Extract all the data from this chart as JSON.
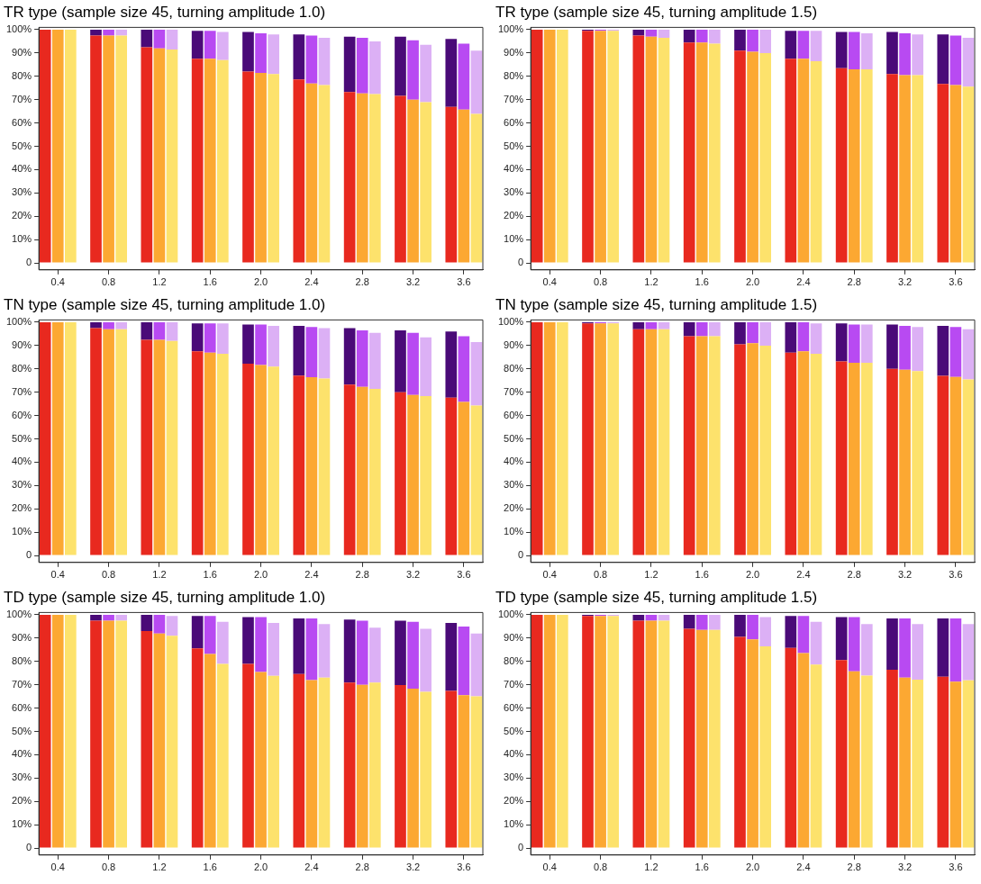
{
  "chart_data": [
    {
      "type": "bar",
      "title": "TR type (sample size 45, turning amplitude 1.0)",
      "stacked": true,
      "categories": [
        null,
        "0.4",
        null,
        null,
        null,
        "0.8",
        null,
        null,
        null,
        "1.2",
        null,
        null,
        null,
        "1.6",
        null,
        null,
        null,
        "2.0",
        null,
        null,
        null,
        "2.4",
        null,
        null,
        null,
        "2.8",
        null,
        null,
        null,
        "3.2",
        null,
        null,
        null,
        "3.6",
        null
      ],
      "ylim": [
        -3,
        101
      ],
      "yticks": [
        {
          "value": 0,
          "label": "0"
        },
        {
          "value": 10,
          "label": "10%"
        },
        {
          "value": 20,
          "label": "20%"
        },
        {
          "value": 30,
          "label": "30%"
        },
        {
          "value": 40,
          "label": "40%"
        },
        {
          "value": 50,
          "label": "50%"
        },
        {
          "value": 60,
          "label": "60%"
        },
        {
          "value": 70,
          "label": "70%"
        },
        {
          "value": 80,
          "label": "80%"
        },
        {
          "value": 90,
          "label": "90%"
        },
        {
          "value": 100,
          "label": "100%"
        }
      ],
      "grid": false,
      "legend": false,
      "series": [
        {
          "colors": [
            "#e8291f",
            "#fca832",
            "#fde26c",
            "#ffffff",
            "#e8291f",
            "#fca832",
            "#fde26c",
            "#ffffff",
            "#e8291f",
            "#fca832",
            "#fde26c",
            "#ffffff",
            "#e8291f",
            "#fca832",
            "#fde26c",
            "#ffffff",
            "#e8291f",
            "#fca832",
            "#fde26c",
            "#ffffff",
            "#e8291f",
            "#fca832",
            "#fde26c",
            "#ffffff",
            "#e8291f",
            "#fca832",
            "#fde26c",
            "#ffffff",
            "#e8291f",
            "#fca832",
            "#fde26c",
            "#ffffff",
            "#e8291f",
            "#fca832",
            "#fde26c"
          ],
          "values": [
            100,
            100,
            100,
            null,
            97.5,
            97.5,
            97.5,
            null,
            92.5,
            92,
            91.5,
            null,
            87.5,
            87.5,
            87,
            null,
            82,
            81.5,
            81,
            null,
            78.7,
            76.9,
            76.3,
            null,
            73.3,
            72.7,
            72.4,
            null,
            71.6,
            70,
            68.9,
            null,
            66.9,
            65.7,
            63.9
          ]
        },
        {
          "colors": [
            "#4a0a78",
            "#b84af2",
            "#dcb0f5",
            "#ffffff",
            "#4a0a78",
            "#b84af2",
            "#dcb0f5",
            "#ffffff",
            "#4a0a78",
            "#b84af2",
            "#dcb0f5",
            "#ffffff",
            "#4a0a78",
            "#b84af2",
            "#dcb0f5",
            "#ffffff",
            "#4a0a78",
            "#b84af2",
            "#dcb0f5",
            "#ffffff",
            "#4a0a78",
            "#b84af2",
            "#dcb0f5",
            "#ffffff",
            "#4a0a78",
            "#b84af2",
            "#dcb0f5",
            "#ffffff",
            "#4a0a78",
            "#b84af2",
            "#dcb0f5",
            "#ffffff",
            "#4a0a78",
            "#b84af2",
            "#dcb0f5"
          ],
          "values": [
            0,
            0,
            0,
            null,
            2.5,
            2.5,
            2.5,
            null,
            7.5,
            8,
            8.5,
            null,
            12,
            12,
            12,
            null,
            17,
            17,
            17,
            null,
            19.3,
            20.6,
            20.2,
            null,
            23.7,
            23.8,
            22.6,
            null,
            25.4,
            25.5,
            24.6,
            null,
            29.1,
            28.3,
            27.1
          ]
        }
      ]
    },
    {
      "type": "bar",
      "title": "TR type (sample size 45, turning amplitude 1.5)",
      "stacked": true,
      "categories": [
        null,
        "0.4",
        null,
        null,
        null,
        "0.8",
        null,
        null,
        null,
        "1.2",
        null,
        null,
        null,
        "1.6",
        null,
        null,
        null,
        "2.0",
        null,
        null,
        null,
        "2.4",
        null,
        null,
        null,
        "2.8",
        null,
        null,
        null,
        "3.2",
        null,
        null,
        null,
        "3.6",
        null
      ],
      "ylim": [
        -3,
        101
      ],
      "yticks": [
        {
          "value": 0,
          "label": "0"
        },
        {
          "value": 10,
          "label": "10%"
        },
        {
          "value": 20,
          "label": "20%"
        },
        {
          "value": 30,
          "label": "30%"
        },
        {
          "value": 40,
          "label": "40%"
        },
        {
          "value": 50,
          "label": "50%"
        },
        {
          "value": 60,
          "label": "60%"
        },
        {
          "value": 70,
          "label": "70%"
        },
        {
          "value": 80,
          "label": "80%"
        },
        {
          "value": 90,
          "label": "90%"
        },
        {
          "value": 100,
          "label": "100%"
        }
      ],
      "grid": false,
      "legend": false,
      "series": [
        {
          "colors": [
            "#e8291f",
            "#fca832",
            "#fde26c",
            "#ffffff",
            "#e8291f",
            "#fca832",
            "#fde26c",
            "#ffffff",
            "#e8291f",
            "#fca832",
            "#fde26c",
            "#ffffff",
            "#e8291f",
            "#fca832",
            "#fde26c",
            "#ffffff",
            "#e8291f",
            "#fca832",
            "#fde26c",
            "#ffffff",
            "#e8291f",
            "#fca832",
            "#fde26c",
            "#ffffff",
            "#e8291f",
            "#fca832",
            "#fde26c",
            "#ffffff",
            "#e8291f",
            "#fca832",
            "#fde26c",
            "#ffffff",
            "#e8291f",
            "#fca832",
            "#fde26c"
          ],
          "values": [
            100,
            100,
            100,
            null,
            99.5,
            99.5,
            99.5,
            null,
            97.5,
            97,
            96.5,
            null,
            94.5,
            94.5,
            94,
            null,
            91,
            90.5,
            90,
            null,
            87.5,
            87.5,
            86.5,
            null,
            83.5,
            83,
            83,
            null,
            81,
            80.5,
            80.5,
            null,
            76.7,
            76.3,
            75.6
          ]
        },
        {
          "colors": [
            "#4a0a78",
            "#b84af2",
            "#dcb0f5",
            "#ffffff",
            "#4a0a78",
            "#b84af2",
            "#dcb0f5",
            "#ffffff",
            "#4a0a78",
            "#b84af2",
            "#dcb0f5",
            "#ffffff",
            "#4a0a78",
            "#b84af2",
            "#dcb0f5",
            "#ffffff",
            "#4a0a78",
            "#b84af2",
            "#dcb0f5",
            "#ffffff",
            "#4a0a78",
            "#b84af2",
            "#dcb0f5",
            "#ffffff",
            "#4a0a78",
            "#b84af2",
            "#dcb0f5",
            "#ffffff",
            "#4a0a78",
            "#b84af2",
            "#dcb0f5",
            "#ffffff",
            "#4a0a78",
            "#b84af2",
            "#dcb0f5"
          ],
          "values": [
            0,
            0,
            0,
            null,
            0.5,
            0.5,
            0.5,
            null,
            2.5,
            3,
            3.5,
            null,
            5.5,
            5.5,
            6,
            null,
            9,
            9.5,
            10,
            null,
            12,
            12,
            13,
            null,
            15.5,
            16,
            15.5,
            null,
            18,
            18,
            17.5,
            null,
            21.3,
            21.2,
            20.9
          ]
        }
      ]
    },
    {
      "type": "bar",
      "title": "TN type (sample size 45, turning amplitude 1.0)",
      "stacked": true,
      "categories": [
        null,
        "0.4",
        null,
        null,
        null,
        "0.8",
        null,
        null,
        null,
        "1.2",
        null,
        null,
        null,
        "1.6",
        null,
        null,
        null,
        "2.0",
        null,
        null,
        null,
        "2.4",
        null,
        null,
        null,
        "2.8",
        null,
        null,
        null,
        "3.2",
        null,
        null,
        null,
        "3.6",
        null
      ],
      "ylim": [
        -3,
        101
      ],
      "yticks": [
        {
          "value": 0,
          "label": "0"
        },
        {
          "value": 10,
          "label": "10%"
        },
        {
          "value": 20,
          "label": "20%"
        },
        {
          "value": 30,
          "label": "30%"
        },
        {
          "value": 40,
          "label": "40%"
        },
        {
          "value": 50,
          "label": "50%"
        },
        {
          "value": 60,
          "label": "60%"
        },
        {
          "value": 70,
          "label": "70%"
        },
        {
          "value": 80,
          "label": "80%"
        },
        {
          "value": 90,
          "label": "90%"
        },
        {
          "value": 100,
          "label": "100%"
        }
      ],
      "grid": false,
      "legend": false,
      "series": [
        {
          "colors": [
            "#e8291f",
            "#fca832",
            "#fde26c",
            "#ffffff",
            "#e8291f",
            "#fca832",
            "#fde26c",
            "#ffffff",
            "#e8291f",
            "#fca832",
            "#fde26c",
            "#ffffff",
            "#e8291f",
            "#fca832",
            "#fde26c",
            "#ffffff",
            "#e8291f",
            "#fca832",
            "#fde26c",
            "#ffffff",
            "#e8291f",
            "#fca832",
            "#fde26c",
            "#ffffff",
            "#e8291f",
            "#fca832",
            "#fde26c",
            "#ffffff",
            "#e8291f",
            "#fca832",
            "#fde26c",
            "#ffffff",
            "#e8291f",
            "#fca832",
            "#fde26c"
          ],
          "values": [
            100,
            100,
            100,
            null,
            97.5,
            97,
            97,
            null,
            92.5,
            92.5,
            92,
            null,
            87.5,
            87,
            86.5,
            null,
            82.2,
            81.7,
            81,
            null,
            77.1,
            76.4,
            75.9,
            null,
            73.3,
            72.3,
            71.4,
            null,
            70,
            68.8,
            68.3,
            null,
            67.7,
            65.8,
            64.3
          ]
        },
        {
          "colors": [
            "#4a0a78",
            "#b84af2",
            "#dcb0f5",
            "#ffffff",
            "#4a0a78",
            "#b84af2",
            "#dcb0f5",
            "#ffffff",
            "#4a0a78",
            "#b84af2",
            "#dcb0f5",
            "#ffffff",
            "#4a0a78",
            "#b84af2",
            "#dcb0f5",
            "#ffffff",
            "#4a0a78",
            "#b84af2",
            "#dcb0f5",
            "#ffffff",
            "#4a0a78",
            "#b84af2",
            "#dcb0f5",
            "#ffffff",
            "#4a0a78",
            "#b84af2",
            "#dcb0f5",
            "#ffffff",
            "#4a0a78",
            "#b84af2",
            "#dcb0f5",
            "#ffffff",
            "#4a0a78",
            "#b84af2",
            "#dcb0f5"
          ],
          "values": [
            0,
            0,
            0,
            null,
            2.5,
            3,
            3,
            null,
            7.5,
            7.5,
            8,
            null,
            12,
            12.5,
            13,
            null,
            16.8,
            17.3,
            17.5,
            null,
            21.4,
            21.6,
            21.6,
            null,
            24.2,
            24.2,
            24.1,
            null,
            26.5,
            26.7,
            25.2,
            null,
            28.3,
            28.2,
            27.2
          ]
        }
      ]
    },
    {
      "type": "bar",
      "title": "TN type (sample size 45, turning amplitude 1.5)",
      "stacked": true,
      "categories": [
        null,
        "0.4",
        null,
        null,
        null,
        "0.8",
        null,
        null,
        null,
        "1.2",
        null,
        null,
        null,
        "1.6",
        null,
        null,
        null,
        "2.0",
        null,
        null,
        null,
        "2.4",
        null,
        null,
        null,
        "2.8",
        null,
        null,
        null,
        "3.2",
        null,
        null,
        null,
        "3.6",
        null
      ],
      "ylim": [
        -3,
        101
      ],
      "yticks": [
        {
          "value": 0,
          "label": "0"
        },
        {
          "value": 10,
          "label": "10%"
        },
        {
          "value": 20,
          "label": "20%"
        },
        {
          "value": 30,
          "label": "30%"
        },
        {
          "value": 40,
          "label": "40%"
        },
        {
          "value": 50,
          "label": "50%"
        },
        {
          "value": 60,
          "label": "60%"
        },
        {
          "value": 70,
          "label": "70%"
        },
        {
          "value": 80,
          "label": "80%"
        },
        {
          "value": 90,
          "label": "90%"
        },
        {
          "value": 100,
          "label": "100%"
        }
      ],
      "grid": false,
      "legend": false,
      "series": [
        {
          "colors": [
            "#e8291f",
            "#fca832",
            "#fde26c",
            "#ffffff",
            "#e8291f",
            "#fca832",
            "#fde26c",
            "#ffffff",
            "#e8291f",
            "#fca832",
            "#fde26c",
            "#ffffff",
            "#e8291f",
            "#fca832",
            "#fde26c",
            "#ffffff",
            "#e8291f",
            "#fca832",
            "#fde26c",
            "#ffffff",
            "#e8291f",
            "#fca832",
            "#fde26c",
            "#ffffff",
            "#e8291f",
            "#fca832",
            "#fde26c",
            "#ffffff",
            "#e8291f",
            "#fca832",
            "#fde26c",
            "#ffffff",
            "#e8291f",
            "#fca832",
            "#fde26c"
          ],
          "values": [
            100,
            100,
            100,
            null,
            99.5,
            99.5,
            99.5,
            null,
            97,
            97,
            97,
            null,
            94,
            94,
            94,
            null,
            90.5,
            91,
            90,
            null,
            87,
            87.5,
            86.5,
            null,
            83.2,
            82.6,
            82.6,
            null,
            80,
            79.6,
            79.1,
            null,
            77,
            76.5,
            75.5
          ]
        },
        {
          "colors": [
            "#4a0a78",
            "#b84af2",
            "#dcb0f5",
            "#ffffff",
            "#4a0a78",
            "#b84af2",
            "#dcb0f5",
            "#ffffff",
            "#4a0a78",
            "#b84af2",
            "#dcb0f5",
            "#ffffff",
            "#4a0a78",
            "#b84af2",
            "#dcb0f5",
            "#ffffff",
            "#4a0a78",
            "#b84af2",
            "#dcb0f5",
            "#ffffff",
            "#4a0a78",
            "#b84af2",
            "#dcb0f5",
            "#ffffff",
            "#4a0a78",
            "#b84af2",
            "#dcb0f5",
            "#ffffff",
            "#4a0a78",
            "#b84af2",
            "#dcb0f5",
            "#ffffff",
            "#4a0a78",
            "#b84af2",
            "#dcb0f5"
          ],
          "values": [
            0,
            0,
            0,
            null,
            0.5,
            0.5,
            0.5,
            null,
            3,
            3,
            3,
            null,
            6,
            6,
            6,
            null,
            9.5,
            9,
            10,
            null,
            13,
            12.5,
            13,
            null,
            16.3,
            16.4,
            16.4,
            null,
            19,
            18.9,
            18.9,
            null,
            21.5,
            21.5,
            21.5
          ]
        }
      ]
    },
    {
      "type": "bar",
      "title": "TD type (sample size 45, turning amplitude 1.0)",
      "stacked": true,
      "categories": [
        null,
        "0.4",
        null,
        null,
        null,
        "0.8",
        null,
        null,
        null,
        "1.2",
        null,
        null,
        null,
        "1.6",
        null,
        null,
        null,
        "2.0",
        null,
        null,
        null,
        "2.4",
        null,
        null,
        null,
        "2.8",
        null,
        null,
        null,
        "3.2",
        null,
        null,
        null,
        "3.6",
        null
      ],
      "ylim": [
        -3,
        101
      ],
      "yticks": [
        {
          "value": 0,
          "label": "0"
        },
        {
          "value": 10,
          "label": "10%"
        },
        {
          "value": 20,
          "label": "20%"
        },
        {
          "value": 30,
          "label": "30%"
        },
        {
          "value": 40,
          "label": "40%"
        },
        {
          "value": 50,
          "label": "50%"
        },
        {
          "value": 60,
          "label": "60%"
        },
        {
          "value": 70,
          "label": "70%"
        },
        {
          "value": 80,
          "label": "80%"
        },
        {
          "value": 90,
          "label": "90%"
        },
        {
          "value": 100,
          "label": "100%"
        }
      ],
      "grid": false,
      "legend": false,
      "series": [
        {
          "colors": [
            "#e8291f",
            "#fca832",
            "#fde26c",
            "#ffffff",
            "#e8291f",
            "#fca832",
            "#fde26c",
            "#ffffff",
            "#e8291f",
            "#fca832",
            "#fde26c",
            "#ffffff",
            "#e8291f",
            "#fca832",
            "#fde26c",
            "#ffffff",
            "#e8291f",
            "#fca832",
            "#fde26c",
            "#ffffff",
            "#e8291f",
            "#fca832",
            "#fde26c",
            "#ffffff",
            "#e8291f",
            "#fca832",
            "#fde26c",
            "#ffffff",
            "#e8291f",
            "#fca832",
            "#fde26c",
            "#ffffff",
            "#e8291f",
            "#fca832",
            "#fde26c"
          ],
          "values": [
            100,
            100,
            100,
            null,
            97.5,
            97.5,
            97.5,
            null,
            93,
            92,
            91,
            null,
            85.6,
            83.2,
            79,
            null,
            79,
            75.5,
            73.8,
            null,
            74.6,
            72,
            73.1,
            null,
            70.9,
            70,
            70.9,
            null,
            69.9,
            68.3,
            67,
            null,
            67.4,
            65.5,
            65.1
          ]
        },
        {
          "colors": [
            "#4a0a78",
            "#b84af2",
            "#dcb0f5",
            "#ffffff",
            "#4a0a78",
            "#b84af2",
            "#dcb0f5",
            "#ffffff",
            "#4a0a78",
            "#b84af2",
            "#dcb0f5",
            "#ffffff",
            "#4a0a78",
            "#b84af2",
            "#dcb0f5",
            "#ffffff",
            "#4a0a78",
            "#b84af2",
            "#dcb0f5",
            "#ffffff",
            "#4a0a78",
            "#b84af2",
            "#dcb0f5",
            "#ffffff",
            "#4a0a78",
            "#b84af2",
            "#dcb0f5",
            "#ffffff",
            "#4a0a78",
            "#b84af2",
            "#dcb0f5",
            "#ffffff",
            "#4a0a78",
            "#b84af2",
            "#dcb0f5"
          ],
          "values": [
            0,
            0,
            0,
            null,
            2.5,
            2.5,
            2.5,
            null,
            7,
            8,
            8.5,
            null,
            13.9,
            16.3,
            18,
            null,
            20,
            23.5,
            22.7,
            null,
            23.9,
            26.5,
            22.9,
            null,
            27.1,
            27.5,
            23.6,
            null,
            27.6,
            28.7,
            27,
            null,
            29.1,
            29.5,
            26.9
          ]
        }
      ]
    },
    {
      "type": "bar",
      "title": "TD type (sample size 45, turning amplitude 1.5)",
      "stacked": true,
      "categories": [
        null,
        "0.4",
        null,
        null,
        null,
        "0.8",
        null,
        null,
        null,
        "1.2",
        null,
        null,
        null,
        "1.6",
        null,
        null,
        null,
        "2.0",
        null,
        null,
        null,
        "2.4",
        null,
        null,
        null,
        "2.8",
        null,
        null,
        null,
        "3.2",
        null,
        null,
        null,
        "3.6",
        null
      ],
      "ylim": [
        -3,
        101
      ],
      "yticks": [
        {
          "value": 0,
          "label": "0"
        },
        {
          "value": 10,
          "label": "10%"
        },
        {
          "value": 20,
          "label": "20%"
        },
        {
          "value": 30,
          "label": "30%"
        },
        {
          "value": 40,
          "label": "40%"
        },
        {
          "value": 50,
          "label": "50%"
        },
        {
          "value": 60,
          "label": "60%"
        },
        {
          "value": 70,
          "label": "70%"
        },
        {
          "value": 80,
          "label": "80%"
        },
        {
          "value": 90,
          "label": "90%"
        },
        {
          "value": 100,
          "label": "100%"
        }
      ],
      "grid": false,
      "legend": false,
      "series": [
        {
          "colors": [
            "#e8291f",
            "#fca832",
            "#fde26c",
            "#ffffff",
            "#e8291f",
            "#fca832",
            "#fde26c",
            "#ffffff",
            "#e8291f",
            "#fca832",
            "#fde26c",
            "#ffffff",
            "#e8291f",
            "#fca832",
            "#fde26c",
            "#ffffff",
            "#e8291f",
            "#fca832",
            "#fde26c",
            "#ffffff",
            "#e8291f",
            "#fca832",
            "#fde26c",
            "#ffffff",
            "#e8291f",
            "#fca832",
            "#fde26c",
            "#ffffff",
            "#e8291f",
            "#fca832",
            "#fde26c",
            "#ffffff",
            "#e8291f",
            "#fca832",
            "#fde26c"
          ],
          "values": [
            100,
            100,
            100,
            null,
            99.5,
            99.5,
            99.5,
            null,
            97.5,
            97.5,
            97.5,
            null,
            94,
            93.5,
            93.5,
            null,
            90.5,
            89.5,
            86.5,
            null,
            85.8,
            83.6,
            78.7,
            null,
            80.6,
            75.8,
            73.9,
            null,
            76.4,
            73.1,
            72.2,
            null,
            73.5,
            71.3,
            71.9
          ]
        },
        {
          "colors": [
            "#4a0a78",
            "#b84af2",
            "#dcb0f5",
            "#ffffff",
            "#4a0a78",
            "#b84af2",
            "#dcb0f5",
            "#ffffff",
            "#4a0a78",
            "#b84af2",
            "#dcb0f5",
            "#ffffff",
            "#4a0a78",
            "#b84af2",
            "#dcb0f5",
            "#ffffff",
            "#4a0a78",
            "#b84af2",
            "#dcb0f5",
            "#ffffff",
            "#4a0a78",
            "#b84af2",
            "#dcb0f5",
            "#ffffff",
            "#4a0a78",
            "#b84af2",
            "#dcb0f5",
            "#ffffff",
            "#4a0a78",
            "#b84af2",
            "#dcb0f5",
            "#ffffff",
            "#4a0a78",
            "#b84af2",
            "#dcb0f5"
          ],
          "values": [
            0,
            0,
            0,
            null,
            0.5,
            0.5,
            0.5,
            null,
            2.5,
            2.5,
            2.5,
            null,
            6,
            6.5,
            6.5,
            null,
            9.5,
            10.5,
            12.5,
            null,
            13.7,
            15.9,
            18.3,
            null,
            18.4,
            23.2,
            22.1,
            null,
            22.1,
            25.4,
            23.8,
            null,
            25,
            27.2,
            24.1
          ]
        }
      ]
    }
  ]
}
